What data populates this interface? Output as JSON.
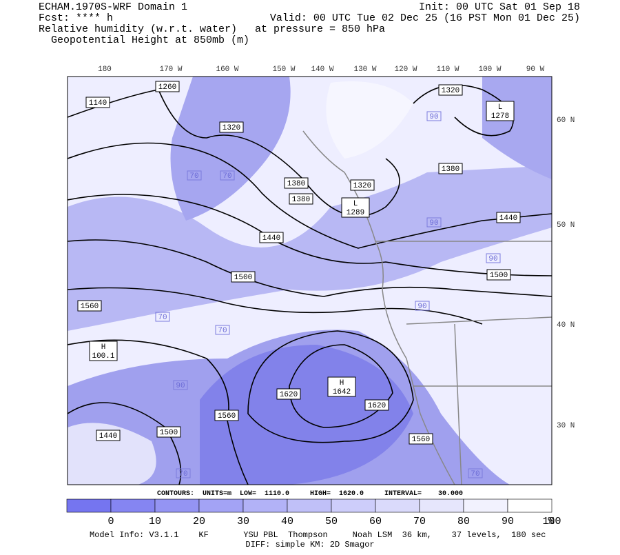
{
  "header": {
    "left": [
      "ECHAM.1970S-WRF Domain 1",
      "Fcst: **** h",
      "Relative humidity (w.r.t. water)",
      "Geopotential Height at 850mb (m)"
    ],
    "right": [
      "Init: 00 UTC Sat 01 Sep 18",
      "Valid: 00 UTC Tue 02 Dec 25 (16 PST Mon 01 Dec 25)",
      "at pressure =  850 hPa"
    ]
  },
  "map": {
    "longitudes": [
      "180",
      "170 W",
      "160 W",
      "150 W",
      "140 W",
      "130 W",
      "120 W",
      "110 W",
      "100 W",
      "90 W"
    ],
    "latitudes": [
      "60 N",
      "50 N",
      "40 N",
      "30 N"
    ],
    "contour_labels": [
      1260,
      1140,
      1320,
      1380,
      1380,
      1320,
      1320,
      1380,
      1440,
      1440,
      1500,
      1500,
      1560,
      1620,
      1620,
      1560,
      1500,
      1560,
      1440
    ],
    "extrema": [
      {
        "kind": "L",
        "value": 1278
      },
      {
        "kind": "L",
        "value": 1289
      },
      {
        "kind": "H",
        "value": 1642
      },
      {
        "kind": "H",
        "value": 100.1
      }
    ],
    "rh_labels": [
      70,
      90,
      70,
      90,
      70,
      90,
      70,
      90,
      70,
      90,
      70
    ]
  },
  "contour_info": "CONTOURS:  UNITS=m  LOW=  1110.0     HIGH=  1620.0     INTERVAL=    30.000",
  "colorbar": {
    "ticks": [
      0,
      10,
      20,
      30,
      40,
      50,
      60,
      70,
      80,
      90,
      100
    ],
    "unit": "%"
  },
  "footer": [
    "Model Info: V3.1.1    KF       YSU PBL  Thompson     Noah LSM  36 km,    37 levels,  180 sec",
    "DIFF: simple KM: 2D Smagor"
  ]
}
